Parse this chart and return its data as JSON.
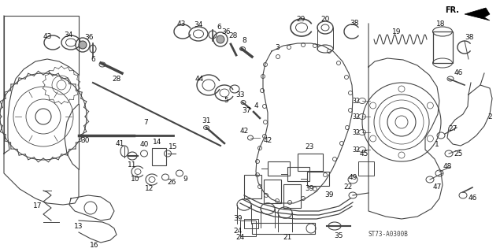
{
  "bg_color": "#ffffff",
  "diagram_code": "ST73-A0300B",
  "fr_label": "FR.",
  "line_color": "#444444",
  "label_color": "#111111",
  "label_fontsize": 6.5,
  "lw": 0.7
}
